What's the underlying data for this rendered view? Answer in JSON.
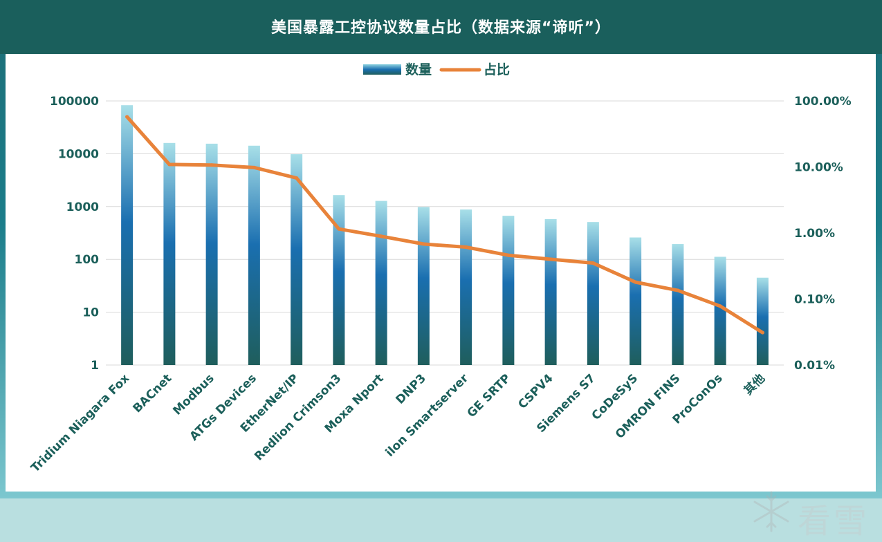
{
  "chart_data": {
    "type": "bar",
    "title": "美国暴露工控协议数量占比（数据来源“谛听”）",
    "categories": [
      "Tridium Niagara Fox",
      "BACnet",
      "Modbus",
      "ATGs Devices",
      "EtherNet/IP",
      "Redlion Crimson3",
      "Moxa Nport",
      "DNP3",
      "ilon Smartserver",
      "GE SRTP",
      "CSPV4",
      "Siemens S7",
      "CoDeSyS",
      "OMRON FINS",
      "ProConOs",
      "其他"
    ],
    "series": [
      {
        "name": "数量",
        "type": "bar",
        "axis": "left",
        "color": "#1a6aa8",
        "values": [
          83000,
          16000,
          15500,
          14200,
          9800,
          1650,
          1280,
          980,
          880,
          670,
          580,
          510,
          260,
          195,
          112,
          45
        ]
      },
      {
        "name": "占比",
        "type": "line",
        "axis": "right",
        "color": "#e8833a",
        "values": [
          57.5,
          10.9,
          10.7,
          9.8,
          6.8,
          1.15,
          0.89,
          0.68,
          0.61,
          0.46,
          0.4,
          0.35,
          0.18,
          0.135,
          0.078,
          0.031
        ]
      }
    ],
    "left_axis": {
      "scale": "log",
      "ylim": [
        1,
        100000
      ],
      "ticks": [
        "1",
        "10",
        "100",
        "1000",
        "10000",
        "100000"
      ]
    },
    "right_axis": {
      "scale": "log",
      "ylim": [
        0.01,
        100
      ],
      "ticks": [
        "0.01%",
        "0.10%",
        "1.00%",
        "10.00%",
        "100.00%"
      ]
    },
    "legend": {
      "position": "top-center",
      "items": [
        "数量",
        "占比"
      ]
    },
    "grid": true
  },
  "watermark": {
    "text": "看雪"
  },
  "colors": {
    "header": "#1a5f5c",
    "axis_text": "#1b5f5a",
    "line": "#e8833a",
    "bar_top": "#a8dfe8",
    "bar_mid": "#1a6fb0",
    "bar_bottom": "#1f5e5c"
  }
}
